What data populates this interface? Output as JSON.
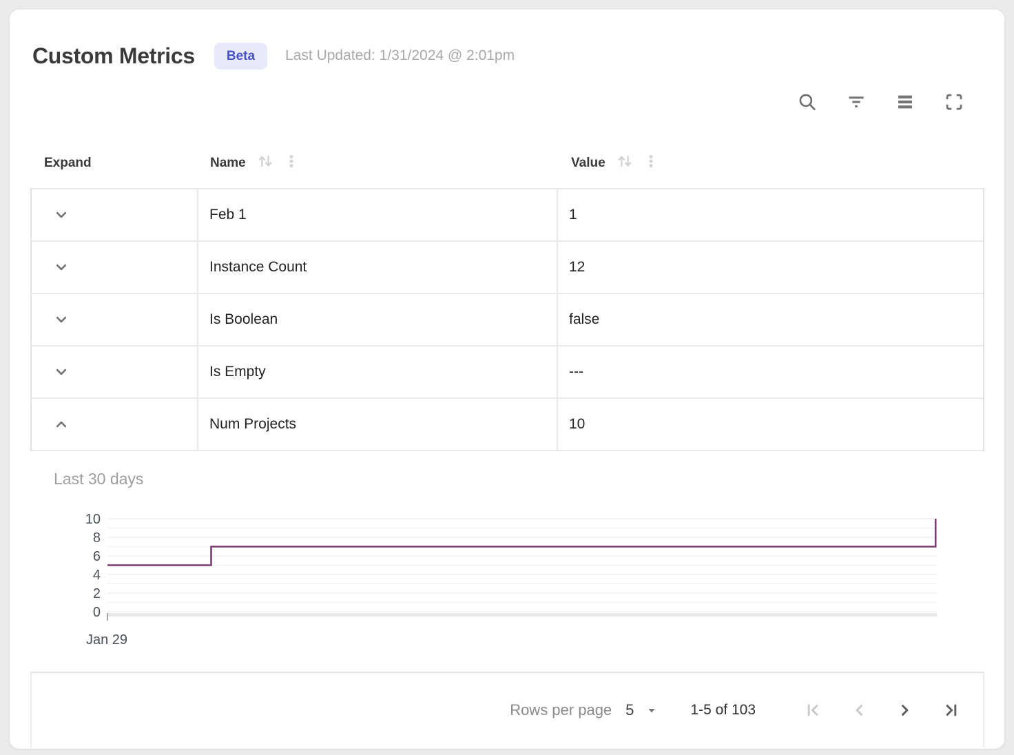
{
  "header": {
    "title": "Custom Metrics",
    "badge": "Beta",
    "last_updated": "Last Updated: 1/31/2024 @ 2:01pm"
  },
  "toolbar": {
    "icons": [
      "search",
      "filter",
      "density",
      "fullscreen"
    ]
  },
  "table": {
    "columns": [
      {
        "label": "Expand",
        "sortable": false
      },
      {
        "label": "Name",
        "sortable": true
      },
      {
        "label": "Value",
        "sortable": true
      }
    ],
    "rows": [
      {
        "name": "Feb 1",
        "value": "1",
        "expanded": false
      },
      {
        "name": "Instance Count",
        "value": "12",
        "expanded": false
      },
      {
        "name": "Is Boolean",
        "value": "false",
        "expanded": false
      },
      {
        "name": "Is Empty",
        "value": "---",
        "expanded": false
      },
      {
        "name": "Num Projects",
        "value": "10",
        "expanded": true
      }
    ]
  },
  "detail_panel": {
    "title": "Last 30 days"
  },
  "chart_data": {
    "type": "line",
    "line_style": "step",
    "title": "Last 30 days",
    "x_tick_labels": [
      "Jan 29"
    ],
    "y_ticks": [
      0,
      2,
      4,
      6,
      8,
      10
    ],
    "ylim": [
      0,
      10
    ],
    "grid_step": 1,
    "grid": "horizontal gridlines every 1 unit",
    "line_color": "#7b3b72",
    "points": [
      {
        "x": 0,
        "y": 5
      },
      {
        "x": 0.125,
        "y": 5
      },
      {
        "x": 0.125,
        "y": 7
      },
      {
        "x": 0.9985,
        "y": 7
      },
      {
        "x": 0.9985,
        "y": 10
      }
    ]
  },
  "footer": {
    "rows_per_page_label": "Rows per page",
    "rows_per_page_value": "5",
    "range_label": "1-5 of 103",
    "nav": [
      {
        "name": "first-page",
        "enabled": false
      },
      {
        "name": "previous-page",
        "enabled": false
      },
      {
        "name": "next-page",
        "enabled": true
      },
      {
        "name": "last-page",
        "enabled": true
      }
    ]
  },
  "colors": {
    "accent_badge_bg": "#e8e9fb",
    "accent_badge_text": "#4752c4",
    "chart_line": "#7b3b72",
    "border": "#e2e2e2"
  }
}
